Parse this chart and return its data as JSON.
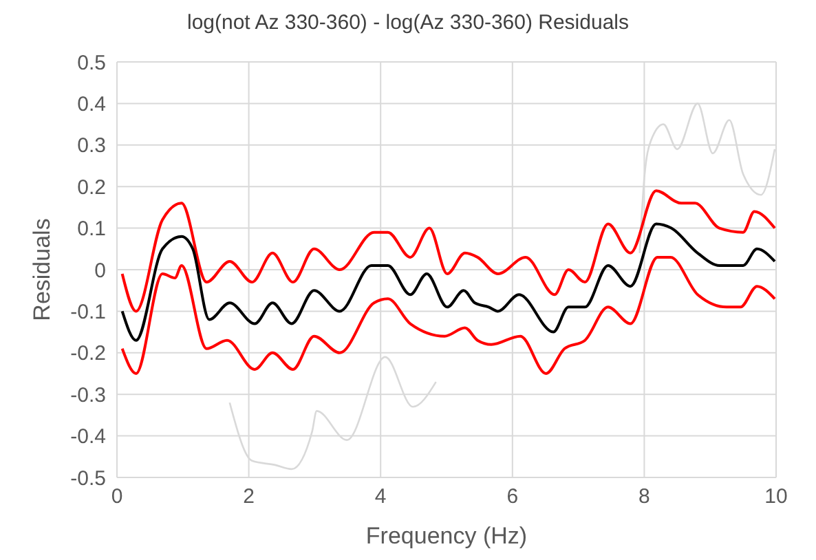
{
  "chart_data": {
    "type": "line",
    "title": "log(not Az 330-360) - log(Az 330-360) Residuals",
    "xlabel": "Frequency (Hz)",
    "ylabel": "Residuals",
    "xlim": [
      0,
      10
    ],
    "xticks": [
      0,
      2,
      4,
      6,
      8,
      10
    ],
    "ylim": [
      -0.5,
      0.5
    ],
    "yticks": [
      -0.5,
      -0.4,
      -0.3,
      -0.2,
      -0.1,
      0,
      0.1,
      0.2,
      0.3,
      0.4,
      0.5
    ],
    "grid": true,
    "marker": "none",
    "line_style": "solid",
    "series": [
      {
        "color": "#d9d9d9",
        "x": [
          1.71,
          2.05,
          2.4,
          2.65,
          2.96,
          3.03,
          3.49,
          4.07,
          4.49,
          4.84
        ],
        "values": [
          -0.32,
          -0.46,
          -0.47,
          -0.48,
          -0.39,
          -0.34,
          -0.41,
          -0.21,
          -0.33,
          -0.27
        ]
      },
      {
        "color": "#d9d9d9",
        "x": [
          7.93,
          8.0,
          8.1,
          8.29,
          8.5,
          8.81,
          9.04,
          9.29,
          9.5,
          9.77,
          9.98
        ],
        "values": [
          0.04,
          0.22,
          0.31,
          0.35,
          0.29,
          0.4,
          0.28,
          0.36,
          0.23,
          0.18,
          0.29
        ]
      },
      {
        "color": "#ff0000",
        "x": [
          0.08,
          0.29,
          0.69,
          0.98,
          1.36,
          1.71,
          2.05,
          2.36,
          2.67,
          2.99,
          3.38,
          3.9,
          4.11,
          4.45,
          4.74,
          5.01,
          5.28,
          5.47,
          5.78,
          6.2,
          6.64,
          6.85,
          7.1,
          7.45,
          7.79,
          8.18,
          8.56,
          8.77,
          9.14,
          9.5,
          9.67,
          9.98
        ],
        "values": [
          -0.01,
          -0.1,
          0.12,
          0.16,
          -0.03,
          0.02,
          -0.03,
          0.04,
          -0.03,
          0.05,
          0,
          0.09,
          0.09,
          0.03,
          0.1,
          -0.01,
          0.04,
          0.03,
          -0.01,
          0.03,
          -0.06,
          0,
          -0.03,
          0.11,
          0.04,
          0.19,
          0.16,
          0.16,
          0.1,
          0.09,
          0.14,
          0.1
        ]
      },
      {
        "color": "#ff0000",
        "x": [
          0.08,
          0.29,
          0.69,
          0.88,
          0.98,
          1.36,
          1.67,
          2.09,
          2.36,
          2.67,
          2.99,
          3.38,
          3.9,
          4.11,
          4.45,
          4.97,
          5.28,
          5.47,
          5.68,
          6.12,
          6.51,
          6.79,
          7.1,
          7.45,
          7.79,
          8.2,
          8.4,
          8.81,
          9.25,
          9.46,
          9.71,
          9.98
        ],
        "values": [
          -0.19,
          -0.25,
          -0.01,
          -0.02,
          0.01,
          -0.19,
          -0.17,
          -0.24,
          -0.2,
          -0.24,
          -0.16,
          -0.2,
          -0.08,
          -0.07,
          -0.13,
          -0.16,
          -0.14,
          -0.17,
          -0.18,
          -0.16,
          -0.25,
          -0.19,
          -0.17,
          -0.09,
          -0.13,
          0.03,
          0.03,
          -0.06,
          -0.09,
          -0.09,
          -0.04,
          -0.07
        ]
      },
      {
        "color": "#000000",
        "x": [
          0.08,
          0.29,
          0.69,
          0.98,
          1.15,
          1.4,
          1.71,
          2.09,
          2.36,
          2.65,
          2.99,
          3.38,
          3.86,
          4.11,
          4.45,
          4.7,
          5.01,
          5.26,
          5.43,
          5.64,
          5.78,
          6.1,
          6.62,
          6.85,
          7.1,
          7.45,
          7.79,
          8.18,
          8.41,
          8.81,
          9.14,
          9.5,
          9.71,
          9.98
        ],
        "values": [
          -0.1,
          -0.17,
          0.05,
          0.08,
          0.05,
          -0.12,
          -0.08,
          -0.13,
          -0.08,
          -0.13,
          -0.05,
          -0.1,
          0.01,
          0.01,
          -0.06,
          -0.01,
          -0.09,
          -0.05,
          -0.08,
          -0.09,
          -0.1,
          -0.06,
          -0.15,
          -0.09,
          -0.09,
          0.01,
          -0.04,
          0.11,
          0.1,
          0.04,
          0.01,
          0.01,
          0.05,
          0.02
        ]
      }
    ]
  }
}
